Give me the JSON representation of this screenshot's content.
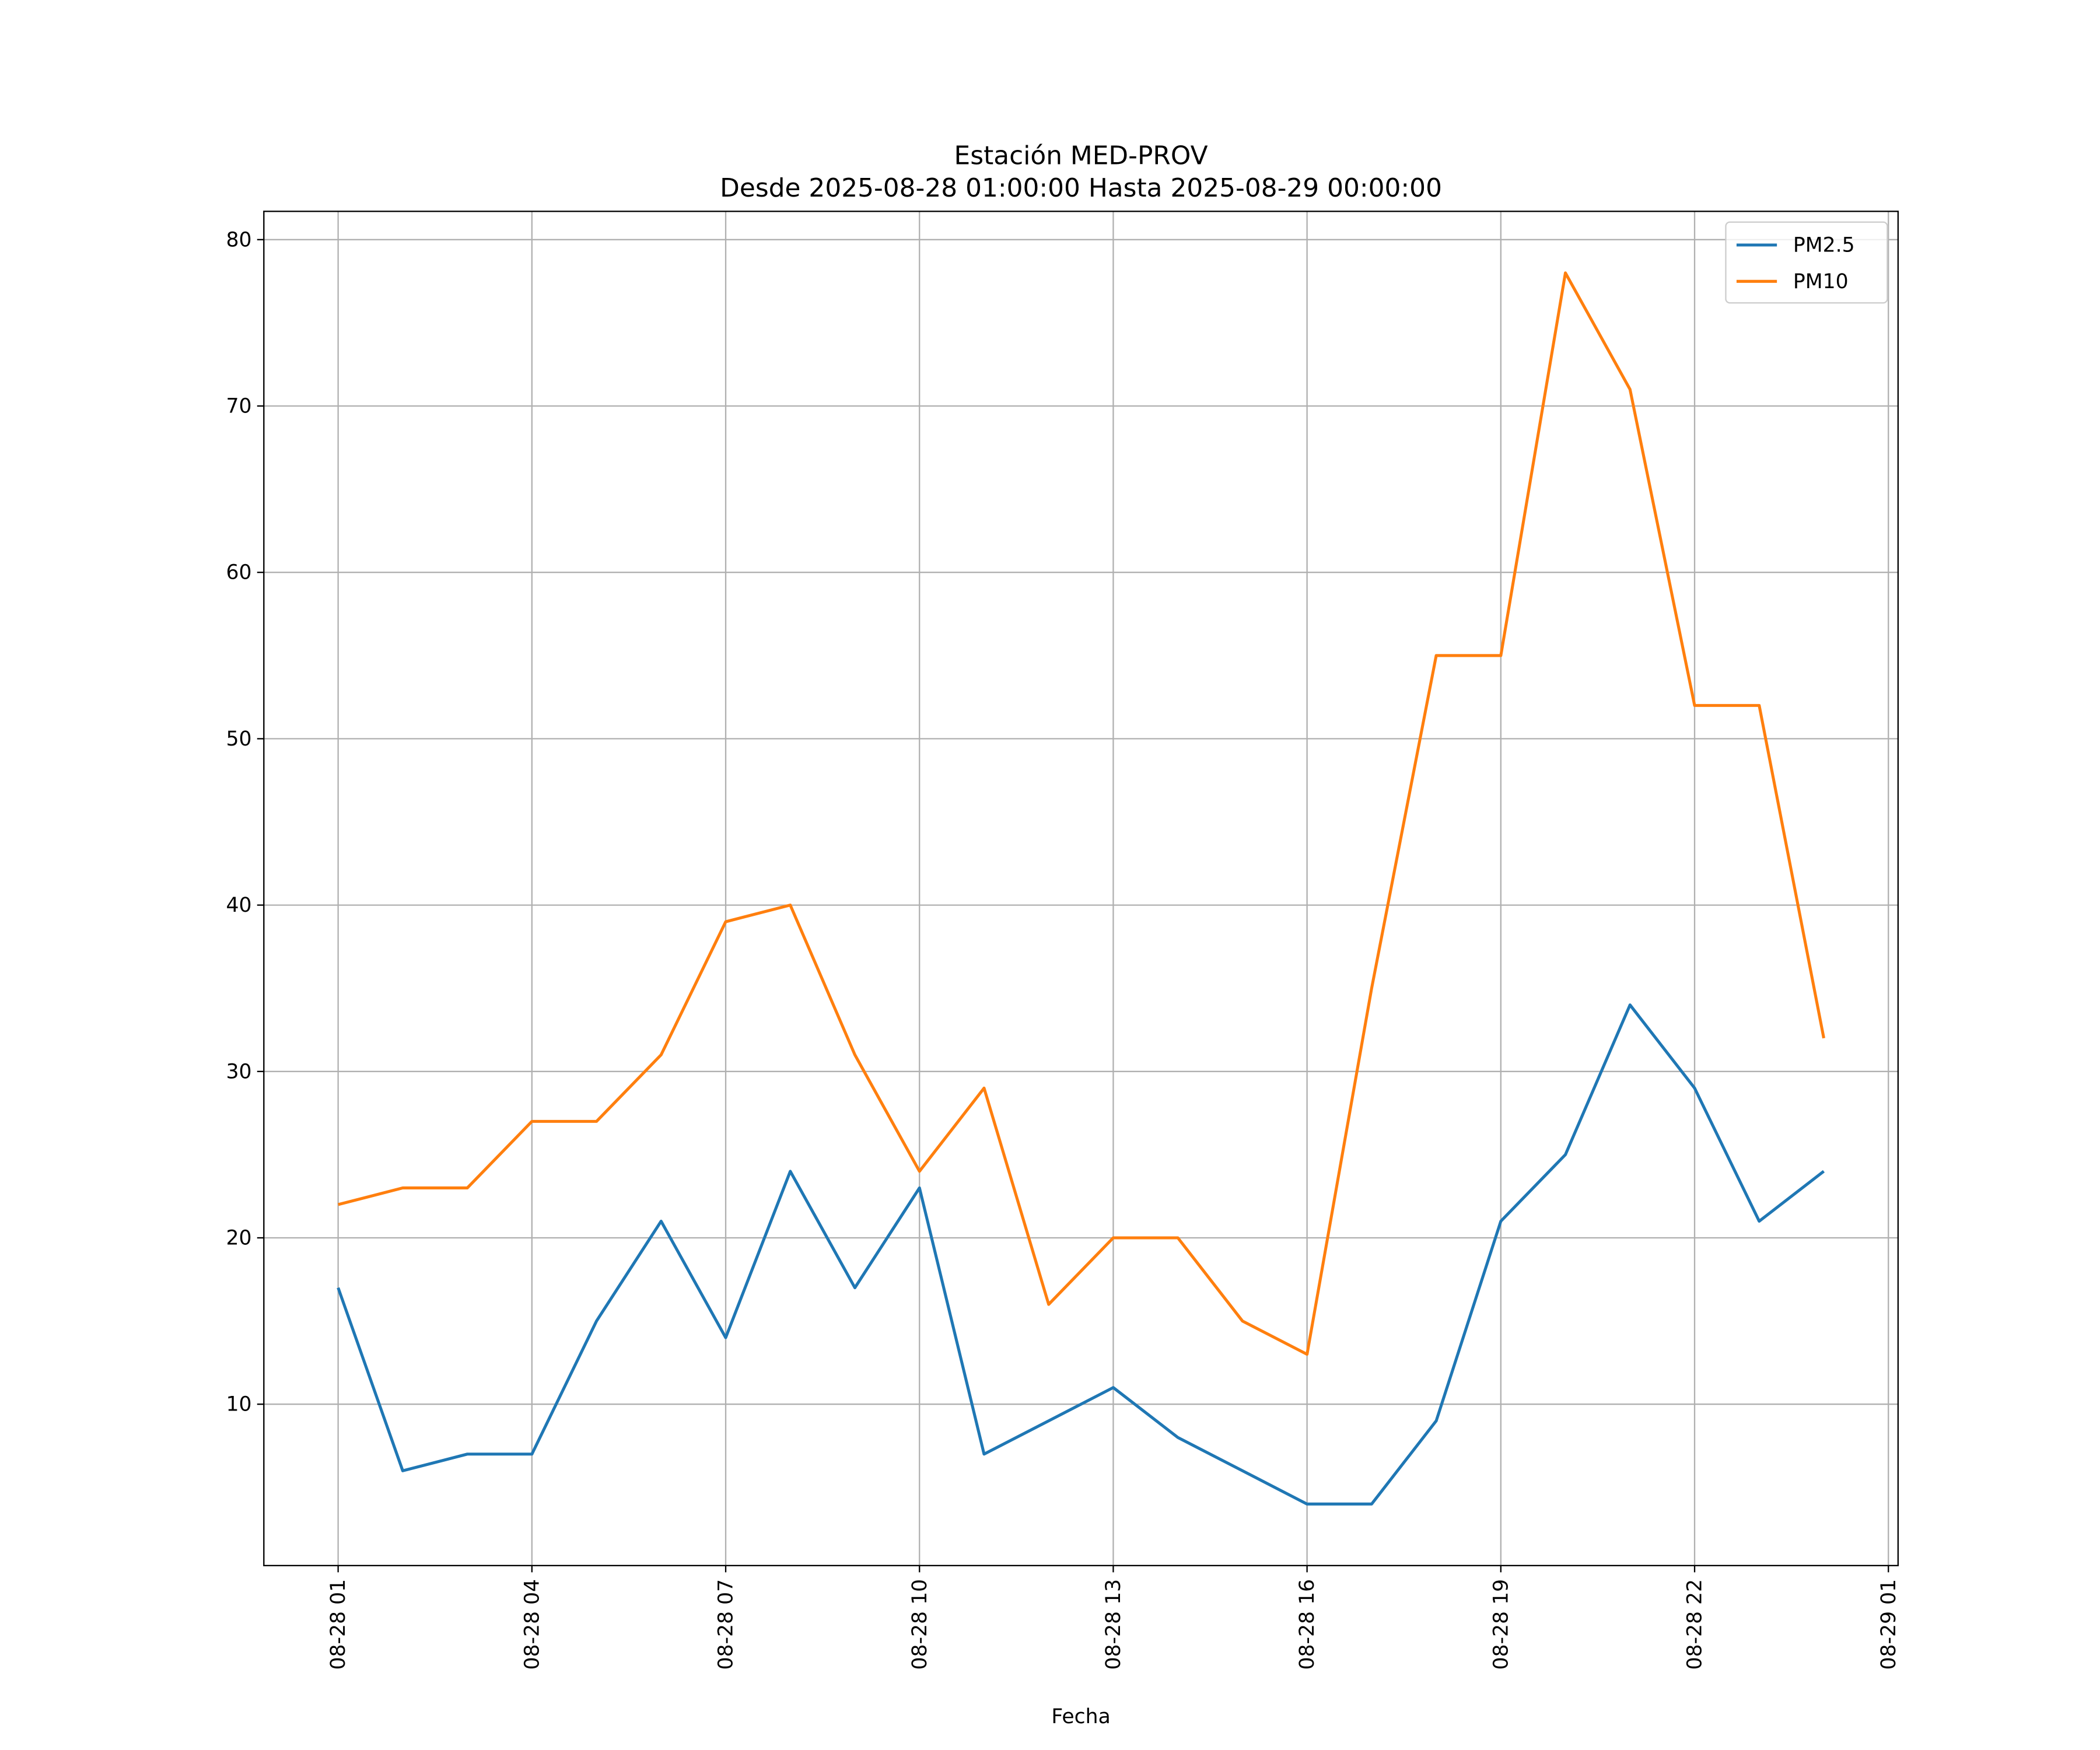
{
  "chart_data": {
    "type": "line",
    "title": "Estación MED-PROV",
    "subtitle": "Desde 2025-08-28 01:00:00 Hasta 2025-08-29 00:00:00",
    "xlabel": "Fecha",
    "ylabel": "",
    "x_hours": [
      1,
      2,
      3,
      4,
      5,
      6,
      7,
      8,
      9,
      10,
      11,
      12,
      13,
      14,
      15,
      16,
      17,
      18,
      19,
      20,
      21,
      22,
      23,
      24
    ],
    "xlim_hours": [
      -0.15,
      25.15
    ],
    "ylim": [
      0.3,
      81.7
    ],
    "x_ticks": [
      {
        "hour": 1,
        "label": "08-28 01"
      },
      {
        "hour": 4,
        "label": "08-28 04"
      },
      {
        "hour": 7,
        "label": "08-28 07"
      },
      {
        "hour": 10,
        "label": "08-28 10"
      },
      {
        "hour": 13,
        "label": "08-28 13"
      },
      {
        "hour": 16,
        "label": "08-28 16"
      },
      {
        "hour": 19,
        "label": "08-28 19"
      },
      {
        "hour": 22,
        "label": "08-28 22"
      },
      {
        "hour": 25,
        "label": "08-29 01"
      }
    ],
    "y_ticks": [
      10,
      20,
      30,
      40,
      50,
      60,
      70,
      80
    ],
    "grid": true,
    "legend_position": "top-right",
    "series": [
      {
        "name": "PM2.5",
        "color": "#1f77b4",
        "values": [
          17,
          6,
          7,
          7,
          15,
          21,
          14,
          24,
          17,
          23,
          7,
          9,
          11,
          8,
          6,
          4,
          4,
          9,
          21,
          25,
          34,
          29,
          21,
          24
        ]
      },
      {
        "name": "PM10",
        "color": "#ff7f0e",
        "values": [
          22,
          23,
          23,
          27,
          27,
          31,
          39,
          40,
          31,
          24,
          29,
          16,
          20,
          20,
          15,
          13,
          35,
          55,
          55,
          78,
          71,
          52,
          52,
          32
        ]
      }
    ]
  }
}
